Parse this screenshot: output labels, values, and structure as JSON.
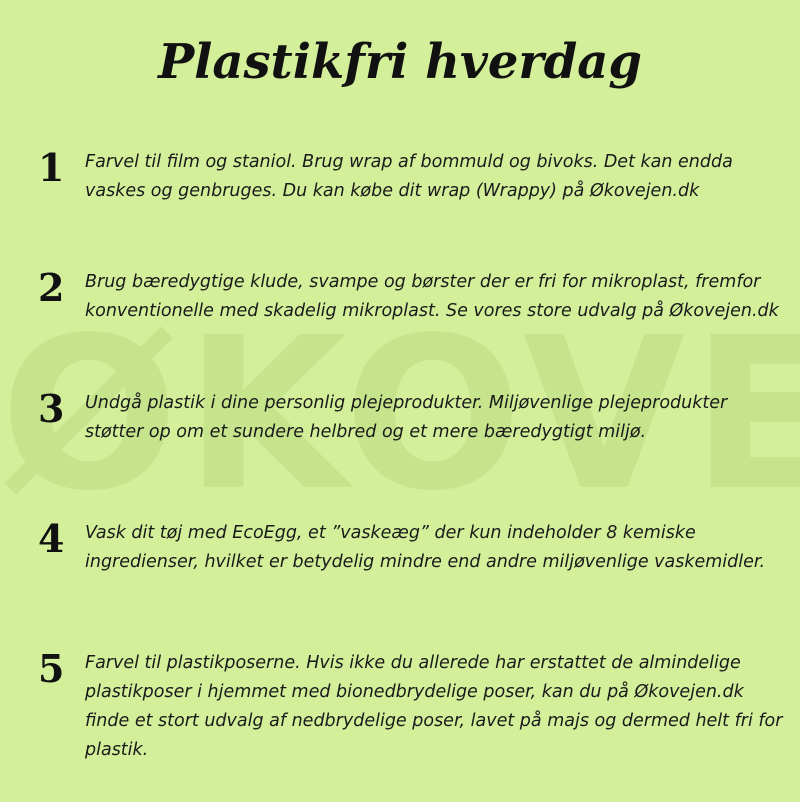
{
  "watermark": "ØKOVEJEN",
  "title": "Plastikfri hverdag",
  "items": [
    {
      "number": "1",
      "text": "Farvel til film og staniol. Brug wrap af bommuld og bivoks. Det kan endda vaskes og genbruges. Du kan købe dit wrap (Wrappy) på Økovejen.dk"
    },
    {
      "number": "2",
      "text": "Brug bæredygtige klude, svampe og børster der er fri for mikroplast, fremfor konventionelle  med skadelig mikroplast. Se vores store udvalg på Økovejen.dk"
    },
    {
      "number": "3",
      "text": "Undgå plastik i dine personlig plejeprodukter. Miljøvenlige plejeprodukter støtter op om et sundere helbred og et mere bæredygtigt miljø."
    },
    {
      "number": "4",
      "text": "Vask dit tøj med EcoEgg, et ”vaskeæg” der kun indeholder 8 kemiske ingredienser, hvilket er betydelig mindre end andre miljøvenlige vaskemidler."
    },
    {
      "number": "5",
      "text": "Farvel til plastikposerne. Hvis ikke du allerede har erstattet de almindelige plastikposer i hjemmet med bionedbrydelige poser, kan du på Økovejen.dk finde et stort udvalg af nedbrydelige poser, lavet på majs og dermed helt fri for plastik."
    }
  ],
  "colors": {
    "background": "#d3ef9a",
    "watermark": "#c5e48c",
    "text": "#1a1a1a"
  }
}
